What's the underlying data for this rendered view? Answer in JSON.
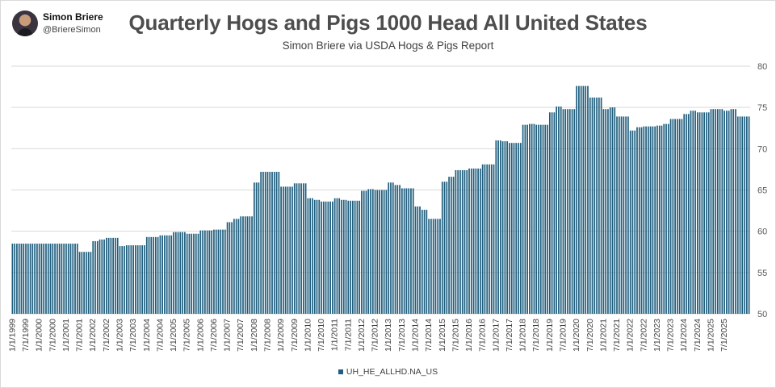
{
  "author": {
    "name": "Simon Briere",
    "handle": "@BriereSimon"
  },
  "title": "Quarterly Hogs and Pigs 1000 Head All United States",
  "subtitle": "Simon Briere via USDA Hogs & Pigs Report",
  "colors": {
    "bar": "#1f5e7e",
    "grid": "#d9d9d9"
  },
  "chart_data": {
    "type": "bar",
    "title": "Quarterly Hogs and Pigs 1000 Head All United States",
    "subtitle": "Simon Briere via USDA Hogs & Pigs Report",
    "xlabel": "",
    "ylabel": "",
    "ylim": [
      50,
      80
    ],
    "yticks": [
      50,
      55,
      60,
      65,
      70,
      75,
      80
    ],
    "y_axis_side": "right",
    "grid": true,
    "legend_position": "bottom",
    "tick_labels": [
      "1/1/1999",
      "7/1/1999",
      "1/1/2000",
      "7/1/2000",
      "1/1/2001",
      "7/1/2001",
      "1/1/2002",
      "7/1/2002",
      "1/1/2003",
      "7/1/2003",
      "1/1/2004",
      "7/1/2004",
      "1/1/2005",
      "7/1/2005",
      "1/1/2006",
      "7/1/2006",
      "1/1/2007",
      "7/1/2007",
      "1/1/2008",
      "7/1/2008",
      "1/1/2009",
      "7/1/2009",
      "1/1/2010",
      "7/1/2010",
      "1/1/2011",
      "7/1/2011",
      "1/1/2012",
      "7/1/2012",
      "1/1/2013",
      "7/1/2013",
      "1/1/2014",
      "7/1/2014",
      "1/1/2015",
      "7/1/2015",
      "1/1/2016",
      "7/1/2016",
      "1/1/2017",
      "7/1/2017",
      "1/1/2018",
      "7/1/2018",
      "1/1/2019",
      "7/1/2019",
      "1/1/2020",
      "7/1/2020",
      "1/1/2021",
      "7/1/2021",
      "1/1/2022",
      "7/1/2022",
      "1/1/2023",
      "7/1/2023",
      "1/1/2024",
      "7/1/2024",
      "1/1/2025",
      "7/1/2025"
    ],
    "series": [
      {
        "name": "UH_HE_ALLHD.NA_US",
        "start": "1999-01",
        "interval_months": 1,
        "values": [
          58.5,
          58.5,
          58.5,
          58.5,
          58.5,
          58.5,
          58.5,
          58.5,
          58.5,
          58.5,
          58.5,
          58.5,
          58.5,
          58.5,
          58.5,
          58.5,
          58.5,
          58.5,
          58.5,
          58.5,
          58.5,
          58.5,
          58.5,
          58.5,
          58.5,
          58.5,
          58.5,
          58.5,
          58.5,
          58.5,
          57.5,
          57.5,
          57.5,
          57.5,
          57.5,
          57.5,
          58.8,
          58.8,
          58.8,
          59.0,
          59.0,
          59.0,
          59.2,
          59.2,
          59.2,
          59.2,
          59.2,
          59.2,
          58.2,
          58.2,
          58.2,
          58.3,
          58.3,
          58.3,
          58.3,
          58.3,
          58.3,
          58.3,
          58.3,
          58.3,
          59.3,
          59.3,
          59.3,
          59.3,
          59.3,
          59.3,
          59.5,
          59.5,
          59.5,
          59.5,
          59.5,
          59.5,
          59.9,
          59.9,
          59.9,
          59.9,
          59.9,
          59.9,
          59.7,
          59.7,
          59.7,
          59.7,
          59.7,
          59.7,
          60.1,
          60.1,
          60.1,
          60.1,
          60.1,
          60.1,
          60.2,
          60.2,
          60.2,
          60.2,
          60.2,
          60.2,
          61.1,
          61.1,
          61.1,
          61.5,
          61.5,
          61.5,
          61.8,
          61.8,
          61.8,
          61.8,
          61.8,
          61.8,
          65.9,
          65.9,
          65.9,
          67.2,
          67.2,
          67.2,
          67.2,
          67.2,
          67.2,
          67.2,
          67.2,
          67.2,
          65.4,
          65.4,
          65.4,
          65.4,
          65.4,
          65.4,
          65.8,
          65.8,
          65.8,
          65.8,
          65.8,
          65.8,
          64.0,
          64.0,
          64.0,
          63.8,
          63.8,
          63.8,
          63.6,
          63.6,
          63.6,
          63.6,
          63.6,
          63.6,
          64.0,
          64.0,
          64.0,
          63.8,
          63.8,
          63.8,
          63.7,
          63.7,
          63.7,
          63.7,
          63.7,
          63.7,
          64.9,
          64.9,
          64.9,
          65.1,
          65.1,
          65.1,
          65.0,
          65.0,
          65.0,
          65.0,
          65.0,
          65.0,
          65.9,
          65.9,
          65.9,
          65.6,
          65.6,
          65.6,
          65.2,
          65.2,
          65.2,
          65.2,
          65.2,
          65.2,
          63.0,
          63.0,
          63.0,
          62.6,
          62.6,
          62.6,
          61.5,
          61.5,
          61.5,
          61.5,
          61.5,
          61.5,
          66.0,
          66.0,
          66.0,
          66.6,
          66.6,
          66.6,
          67.4,
          67.4,
          67.4,
          67.4,
          67.4,
          67.4,
          67.6,
          67.6,
          67.6,
          67.6,
          67.6,
          67.6,
          68.1,
          68.1,
          68.1,
          68.1,
          68.1,
          68.1,
          71.0,
          71.0,
          71.0,
          70.9,
          70.9,
          70.9,
          70.7,
          70.7,
          70.7,
          70.7,
          70.7,
          70.7,
          72.9,
          72.9,
          72.9,
          73.0,
          73.0,
          73.0,
          72.9,
          72.9,
          72.9,
          72.9,
          72.9,
          72.9,
          74.4,
          74.4,
          74.4,
          75.1,
          75.1,
          75.1,
          74.8,
          74.8,
          74.8,
          74.8,
          74.8,
          74.8,
          77.6,
          77.6,
          77.6,
          77.6,
          77.6,
          77.6,
          76.2,
          76.2,
          76.2,
          76.2,
          76.2,
          76.2,
          74.8,
          74.8,
          74.8,
          75.0,
          75.0,
          75.0,
          73.9,
          73.9,
          73.9,
          73.9,
          73.9,
          73.9,
          72.2,
          72.2,
          72.2,
          72.6,
          72.6,
          72.6,
          72.7,
          72.7,
          72.7,
          72.7,
          72.7,
          72.7,
          72.8,
          72.8,
          72.8,
          73.0,
          73.0,
          73.0,
          73.6,
          73.6,
          73.6,
          73.6,
          73.6,
          73.6,
          74.2,
          74.2,
          74.2,
          74.6,
          74.6,
          74.6,
          74.4,
          74.4,
          74.4,
          74.4,
          74.4,
          74.4,
          74.8,
          74.8,
          74.8,
          74.8,
          74.8,
          74.8,
          74.6,
          74.6,
          74.6,
          74.8,
          74.8,
          74.8,
          73.9,
          73.9,
          73.9,
          73.9,
          73.9,
          73.9
        ]
      }
    ]
  }
}
